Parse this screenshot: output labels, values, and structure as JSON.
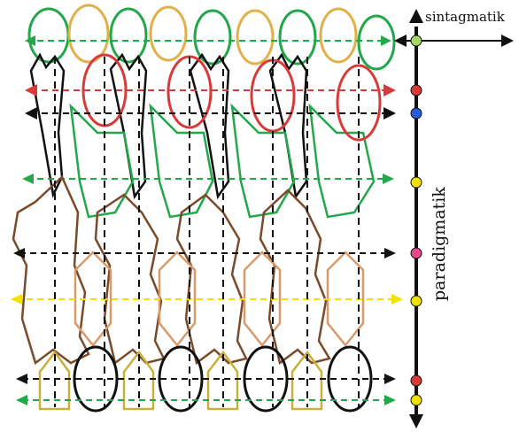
{
  "labels": {
    "horizontal_axis": "sintagmatik",
    "vertical_axis": "paradigmatik"
  },
  "colors": {
    "green": "#22a84a",
    "gold": "#e2b04a",
    "red": "#d83a3a",
    "black": "#111111",
    "brown": "#7a4a2a",
    "tan": "#d99a6a",
    "olive": "#c9b03a",
    "yellow": "#f2e200",
    "pink": "#e24a8a",
    "blue": "#2a5bd8"
  }
}
